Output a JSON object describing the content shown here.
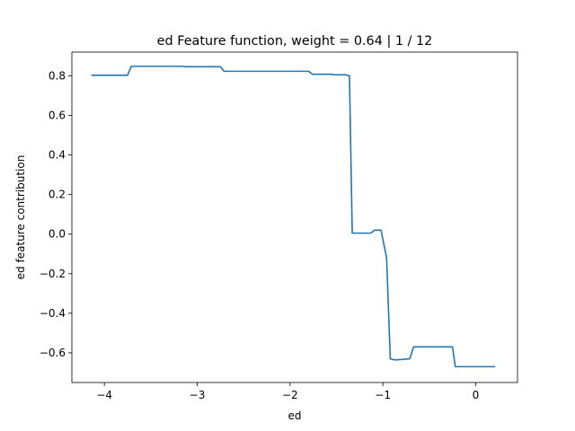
{
  "chart_data": {
    "type": "line",
    "title": "ed Feature function, weight = 0.64 | 1 / 12",
    "xlabel": "ed",
    "ylabel": "ed feature contribution",
    "xlim": [
      -4.35,
      0.45
    ],
    "ylim": [
      -0.75,
      0.92
    ],
    "xticks": [
      -4,
      -3,
      -2,
      -1,
      0
    ],
    "xtick_labels": [
      "−4",
      "−3",
      "−2",
      "−1",
      "0"
    ],
    "yticks": [
      -0.6,
      -0.4,
      -0.2,
      0.0,
      0.2,
      0.4,
      0.6,
      0.8
    ],
    "ytick_labels": [
      "−0.6",
      "−0.4",
      "−0.2",
      "0.0",
      "0.2",
      "0.4",
      "0.6",
      "0.8"
    ],
    "grid": false,
    "line_color": "#1f77b4",
    "series": [
      {
        "x": [
          -4.14,
          -3.75,
          -3.71,
          -3.15,
          -3.13,
          -2.75,
          -2.71,
          -1.8,
          -1.76,
          -1.55,
          -1.53,
          -1.4,
          -1.36,
          -1.33,
          -1.13,
          -1.09,
          -1.02,
          -0.96,
          -0.92,
          -0.88,
          -0.84,
          -0.71,
          -0.67,
          -0.63,
          -0.54,
          -0.43,
          -0.25,
          -0.22,
          -0.16,
          0.21
        ],
        "y": [
          0.803,
          0.803,
          0.848,
          0.848,
          0.846,
          0.846,
          0.823,
          0.823,
          0.808,
          0.808,
          0.805,
          0.805,
          0.8,
          0.005,
          0.005,
          0.02,
          0.02,
          -0.12,
          -0.63,
          -0.635,
          -0.635,
          -0.63,
          -0.57,
          -0.57,
          -0.57,
          -0.57,
          -0.57,
          -0.67,
          -0.67,
          -0.67
        ]
      }
    ]
  }
}
